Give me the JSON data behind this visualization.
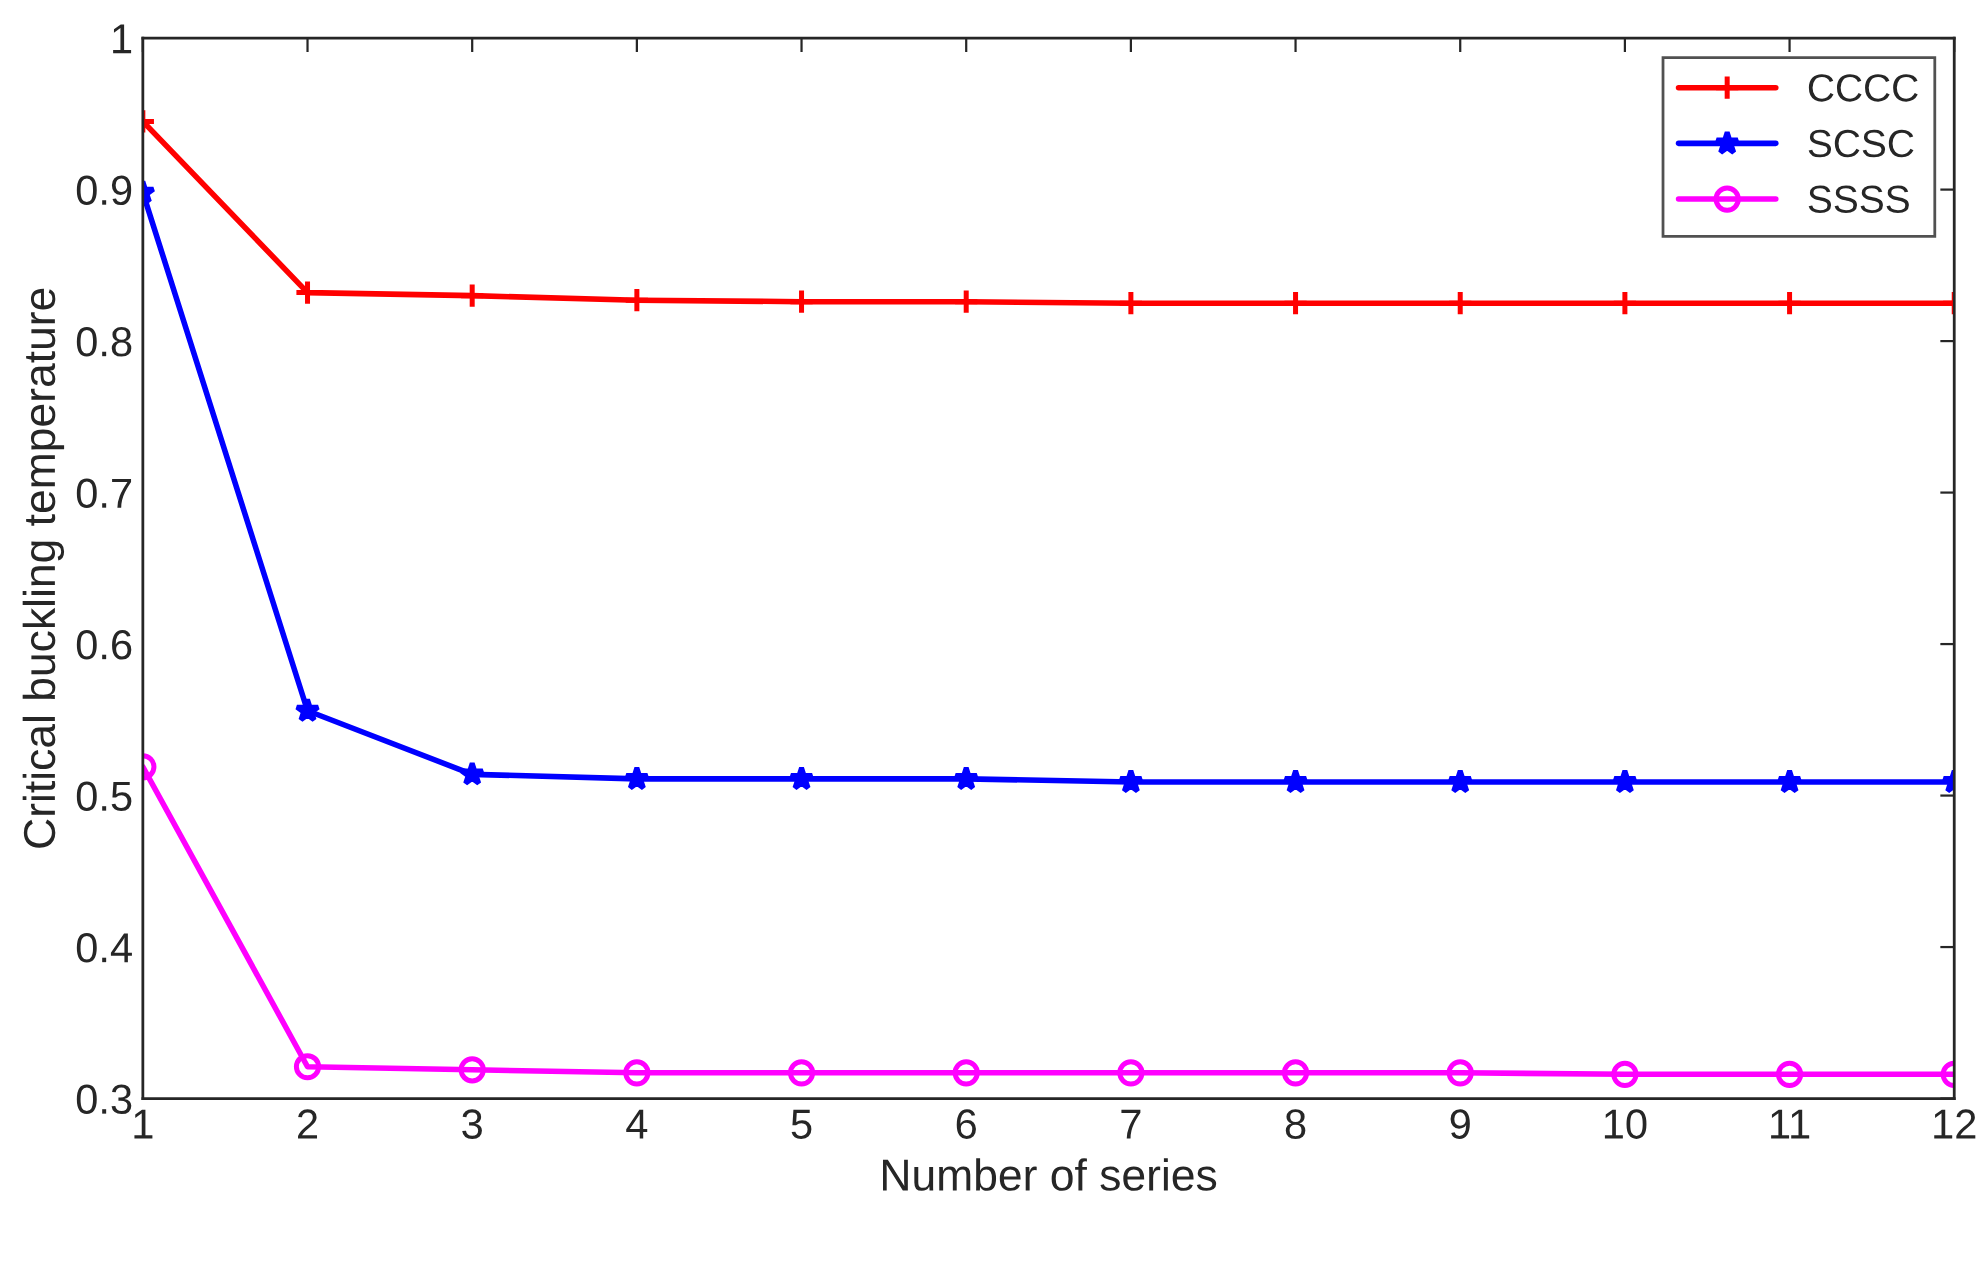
{
  "chart_data": {
    "type": "line",
    "xlabel": "Number of series",
    "ylabel": "Critical buckling temperature",
    "x": [
      1,
      2,
      3,
      4,
      5,
      6,
      7,
      8,
      9,
      10,
      11,
      12
    ],
    "series": [
      {
        "name": "CCCC",
        "color": "#ff0000",
        "marker": "cross",
        "values": [
          0.945,
          0.832,
          0.83,
          0.827,
          0.826,
          0.826,
          0.825,
          0.825,
          0.825,
          0.825,
          0.825,
          0.825
        ]
      },
      {
        "name": "SCSC",
        "color": "#0000ff",
        "marker": "star",
        "values": [
          0.898,
          0.556,
          0.514,
          0.511,
          0.511,
          0.511,
          0.509,
          0.509,
          0.509,
          0.509,
          0.509,
          0.509
        ]
      },
      {
        "name": "SSSS",
        "color": "#ff00ff",
        "marker": "circle",
        "values": [
          0.519,
          0.321,
          0.319,
          0.317,
          0.317,
          0.317,
          0.317,
          0.317,
          0.317,
          0.316,
          0.316,
          0.316
        ]
      }
    ],
    "xlim": [
      1,
      12
    ],
    "xticks": [
      1,
      2,
      3,
      4,
      5,
      6,
      7,
      8,
      9,
      10,
      11,
      12
    ],
    "ylim": [
      0.3,
      1
    ],
    "yticks": [
      0.3,
      0.4,
      0.5,
      0.6,
      0.7,
      0.8,
      0.9,
      1
    ],
    "grid": false,
    "legend": "top right",
    "line_style": "solid"
  }
}
